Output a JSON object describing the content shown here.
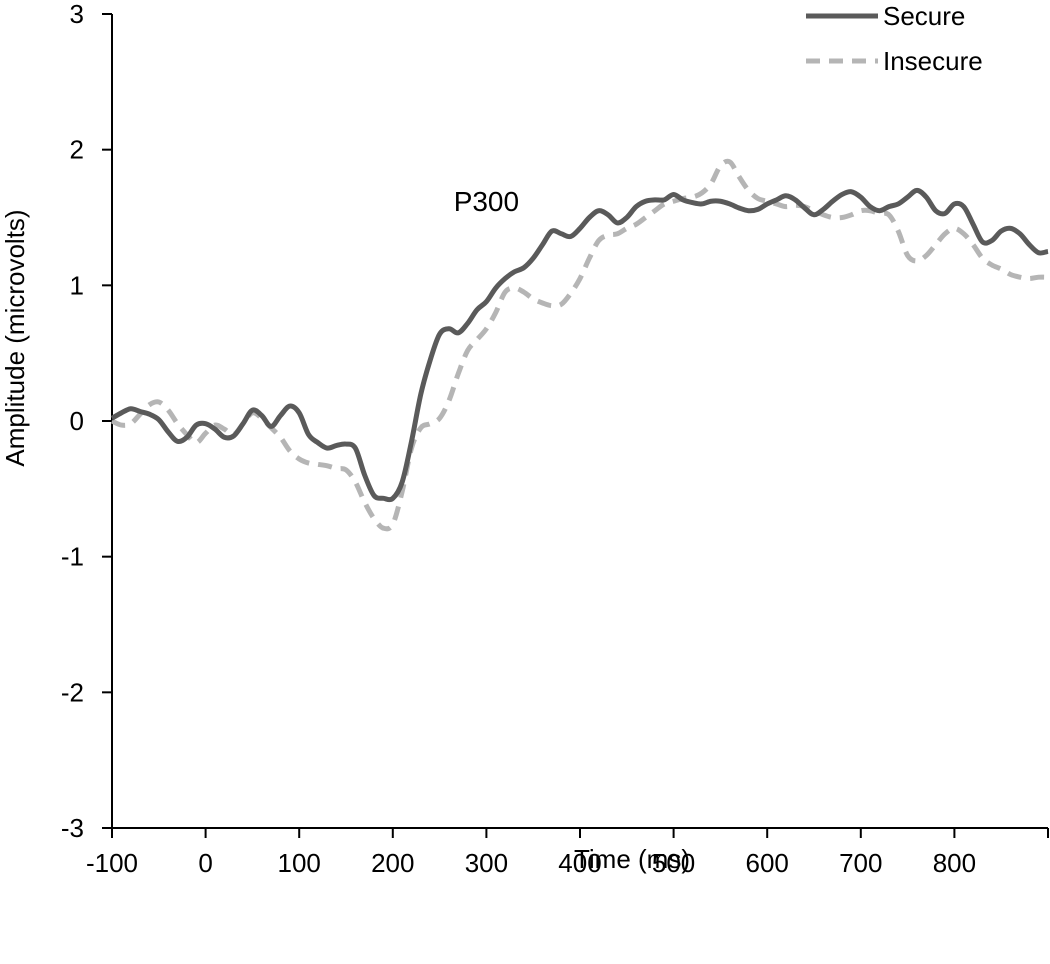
{
  "chart_data": {
    "type": "line",
    "title": "",
    "xlabel": "Time (ms)",
    "ylabel": "Amplitude (microvolts)",
    "xlim": [
      -100,
      900
    ],
    "ylim": [
      -3,
      3
    ],
    "xticks": [
      -100,
      0,
      100,
      200,
      300,
      400,
      500,
      600,
      700,
      800
    ],
    "xtick_labels": [
      "-100",
      "0",
      "100",
      "200",
      "300",
      "400",
      "500",
      "600",
      "700",
      "800"
    ],
    "yticks": [
      3,
      2,
      1,
      0,
      -1,
      -2,
      -3
    ],
    "ytick_labels": [
      "3",
      "2",
      "1",
      "0",
      "-1",
      "-2",
      "-3"
    ],
    "legend_position": "top-right",
    "grid": false,
    "annotations": [
      {
        "text": "P300",
        "x": 300,
        "y": 1.62
      }
    ],
    "series": [
      {
        "name": "Secure",
        "color": "#5a5a5a",
        "style": "solid",
        "points": [
          [
            -100,
            0.02
          ],
          [
            -90,
            0.06
          ],
          [
            -80,
            0.09
          ],
          [
            -70,
            0.07
          ],
          [
            -60,
            0.05
          ],
          [
            -50,
            0.01
          ],
          [
            -40,
            -0.08
          ],
          [
            -30,
            -0.15
          ],
          [
            -20,
            -0.12
          ],
          [
            -10,
            -0.03
          ],
          [
            0,
            -0.02
          ],
          [
            10,
            -0.06
          ],
          [
            20,
            -0.12
          ],
          [
            30,
            -0.11
          ],
          [
            40,
            -0.02
          ],
          [
            50,
            0.08
          ],
          [
            60,
            0.04
          ],
          [
            70,
            -0.04
          ],
          [
            80,
            0.04
          ],
          [
            90,
            0.11
          ],
          [
            100,
            0.06
          ],
          [
            110,
            -0.1
          ],
          [
            120,
            -0.16
          ],
          [
            130,
            -0.2
          ],
          [
            140,
            -0.18
          ],
          [
            150,
            -0.17
          ],
          [
            160,
            -0.2
          ],
          [
            170,
            -0.4
          ],
          [
            180,
            -0.55
          ],
          [
            190,
            -0.57
          ],
          [
            200,
            -0.57
          ],
          [
            210,
            -0.45
          ],
          [
            220,
            -0.15
          ],
          [
            230,
            0.2
          ],
          [
            240,
            0.45
          ],
          [
            250,
            0.64
          ],
          [
            260,
            0.68
          ],
          [
            270,
            0.65
          ],
          [
            280,
            0.72
          ],
          [
            290,
            0.82
          ],
          [
            300,
            0.88
          ],
          [
            310,
            0.98
          ],
          [
            320,
            1.05
          ],
          [
            330,
            1.1
          ],
          [
            340,
            1.13
          ],
          [
            350,
            1.2
          ],
          [
            360,
            1.3
          ],
          [
            370,
            1.4
          ],
          [
            380,
            1.38
          ],
          [
            390,
            1.36
          ],
          [
            400,
            1.42
          ],
          [
            410,
            1.5
          ],
          [
            420,
            1.55
          ],
          [
            430,
            1.52
          ],
          [
            440,
            1.46
          ],
          [
            450,
            1.5
          ],
          [
            460,
            1.58
          ],
          [
            470,
            1.62
          ],
          [
            480,
            1.63
          ],
          [
            490,
            1.63
          ],
          [
            500,
            1.67
          ],
          [
            510,
            1.63
          ],
          [
            520,
            1.61
          ],
          [
            530,
            1.6
          ],
          [
            540,
            1.62
          ],
          [
            550,
            1.62
          ],
          [
            560,
            1.6
          ],
          [
            570,
            1.57
          ],
          [
            580,
            1.55
          ],
          [
            590,
            1.56
          ],
          [
            600,
            1.6
          ],
          [
            610,
            1.63
          ],
          [
            620,
            1.66
          ],
          [
            630,
            1.63
          ],
          [
            640,
            1.57
          ],
          [
            650,
            1.52
          ],
          [
            660,
            1.56
          ],
          [
            670,
            1.62
          ],
          [
            680,
            1.67
          ],
          [
            690,
            1.69
          ],
          [
            700,
            1.65
          ],
          [
            710,
            1.58
          ],
          [
            720,
            1.55
          ],
          [
            730,
            1.58
          ],
          [
            740,
            1.6
          ],
          [
            750,
            1.65
          ],
          [
            760,
            1.7
          ],
          [
            770,
            1.65
          ],
          [
            780,
            1.55
          ],
          [
            790,
            1.53
          ],
          [
            800,
            1.6
          ],
          [
            810,
            1.58
          ],
          [
            820,
            1.45
          ],
          [
            830,
            1.32
          ],
          [
            840,
            1.33
          ],
          [
            850,
            1.4
          ],
          [
            860,
            1.42
          ],
          [
            870,
            1.38
          ],
          [
            880,
            1.3
          ],
          [
            890,
            1.24
          ],
          [
            900,
            1.25
          ]
        ]
      },
      {
        "name": "Insecure",
        "color": "#b5b5b5",
        "style": "dashed",
        "points": [
          [
            -100,
            0.0
          ],
          [
            -90,
            -0.03
          ],
          [
            -80,
            -0.02
          ],
          [
            -70,
            0.05
          ],
          [
            -60,
            0.12
          ],
          [
            -50,
            0.14
          ],
          [
            -40,
            0.08
          ],
          [
            -30,
            -0.02
          ],
          [
            -20,
            -0.1
          ],
          [
            -10,
            -0.16
          ],
          [
            0,
            -0.09
          ],
          [
            10,
            -0.03
          ],
          [
            20,
            -0.06
          ],
          [
            30,
            -0.1
          ],
          [
            40,
            -0.02
          ],
          [
            50,
            0.06
          ],
          [
            60,
            0.02
          ],
          [
            70,
            -0.05
          ],
          [
            80,
            -0.12
          ],
          [
            90,
            -0.22
          ],
          [
            100,
            -0.28
          ],
          [
            110,
            -0.31
          ],
          [
            120,
            -0.32
          ],
          [
            130,
            -0.33
          ],
          [
            140,
            -0.35
          ],
          [
            150,
            -0.36
          ],
          [
            160,
            -0.45
          ],
          [
            170,
            -0.6
          ],
          [
            180,
            -0.72
          ],
          [
            190,
            -0.79
          ],
          [
            200,
            -0.76
          ],
          [
            210,
            -0.52
          ],
          [
            220,
            -0.2
          ],
          [
            230,
            -0.05
          ],
          [
            240,
            -0.02
          ],
          [
            250,
            0.02
          ],
          [
            260,
            0.15
          ],
          [
            270,
            0.35
          ],
          [
            280,
            0.52
          ],
          [
            290,
            0.6
          ],
          [
            300,
            0.68
          ],
          [
            310,
            0.8
          ],
          [
            320,
            0.95
          ],
          [
            330,
            0.98
          ],
          [
            340,
            0.95
          ],
          [
            350,
            0.9
          ],
          [
            360,
            0.87
          ],
          [
            370,
            0.85
          ],
          [
            380,
            0.86
          ],
          [
            390,
            0.94
          ],
          [
            400,
            1.05
          ],
          [
            410,
            1.2
          ],
          [
            420,
            1.33
          ],
          [
            430,
            1.37
          ],
          [
            440,
            1.38
          ],
          [
            450,
            1.42
          ],
          [
            460,
            1.45
          ],
          [
            470,
            1.5
          ],
          [
            480,
            1.55
          ],
          [
            490,
            1.6
          ],
          [
            500,
            1.62
          ],
          [
            510,
            1.64
          ],
          [
            520,
            1.65
          ],
          [
            530,
            1.68
          ],
          [
            540,
            1.75
          ],
          [
            550,
            1.88
          ],
          [
            560,
            1.91
          ],
          [
            570,
            1.8
          ],
          [
            580,
            1.7
          ],
          [
            590,
            1.64
          ],
          [
            600,
            1.62
          ],
          [
            610,
            1.6
          ],
          [
            620,
            1.58
          ],
          [
            630,
            1.59
          ],
          [
            640,
            1.58
          ],
          [
            650,
            1.55
          ],
          [
            660,
            1.52
          ],
          [
            670,
            1.5
          ],
          [
            680,
            1.5
          ],
          [
            690,
            1.52
          ],
          [
            700,
            1.55
          ],
          [
            710,
            1.55
          ],
          [
            720,
            1.53
          ],
          [
            730,
            1.52
          ],
          [
            740,
            1.4
          ],
          [
            750,
            1.22
          ],
          [
            760,
            1.18
          ],
          [
            770,
            1.22
          ],
          [
            780,
            1.3
          ],
          [
            790,
            1.38
          ],
          [
            800,
            1.42
          ],
          [
            810,
            1.38
          ],
          [
            820,
            1.3
          ],
          [
            830,
            1.2
          ],
          [
            840,
            1.15
          ],
          [
            850,
            1.12
          ],
          [
            860,
            1.08
          ],
          [
            870,
            1.06
          ],
          [
            880,
            1.05
          ],
          [
            890,
            1.06
          ],
          [
            900,
            1.06
          ]
        ]
      }
    ]
  }
}
